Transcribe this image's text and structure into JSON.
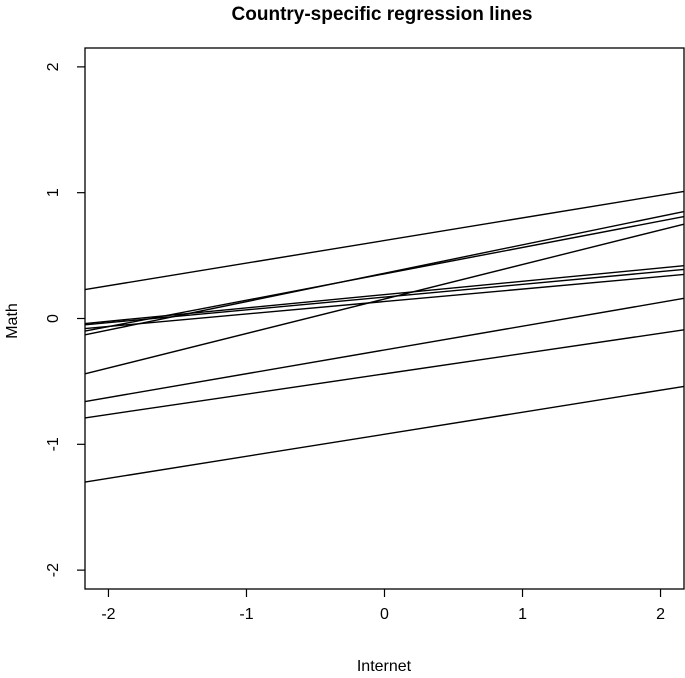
{
  "chart_data": {
    "type": "line",
    "title": "Country-specific regression lines",
    "xlabel": "Internet",
    "ylabel": "Math",
    "xlim": [
      -2.17,
      2.17
    ],
    "ylim": [
      -2.15,
      2.15
    ],
    "x_ticks": [
      -2,
      -1,
      0,
      1,
      2
    ],
    "x_tick_labels": [
      "-2",
      "-1",
      "0",
      "1",
      "2"
    ],
    "y_ticks": [
      -2,
      -1,
      0,
      1,
      2
    ],
    "y_tick_labels": [
      "-2",
      "-1",
      "0",
      "1",
      "2"
    ],
    "grid": false,
    "series": [
      {
        "x": [
          -2.17,
          2.17
        ],
        "values": [
          0.23,
          1.01
        ]
      },
      {
        "x": [
          -2.17,
          2.17
        ],
        "values": [
          -0.13,
          0.85
        ]
      },
      {
        "x": [
          -2.17,
          2.17
        ],
        "values": [
          -0.1,
          0.81
        ]
      },
      {
        "x": [
          -2.17,
          2.17
        ],
        "values": [
          -0.44,
          0.75
        ]
      },
      {
        "x": [
          -2.17,
          2.17
        ],
        "values": [
          -0.04,
          0.42
        ]
      },
      {
        "x": [
          -2.17,
          2.17
        ],
        "values": [
          -0.05,
          0.39
        ]
      },
      {
        "x": [
          -2.17,
          2.17
        ],
        "values": [
          -0.08,
          0.35
        ]
      },
      {
        "x": [
          -2.17,
          2.17
        ],
        "values": [
          -0.66,
          0.16
        ]
      },
      {
        "x": [
          -2.17,
          2.17
        ],
        "values": [
          -0.79,
          -0.09
        ]
      },
      {
        "x": [
          -2.17,
          2.17
        ],
        "values": [
          -1.3,
          -0.54
        ]
      }
    ]
  }
}
